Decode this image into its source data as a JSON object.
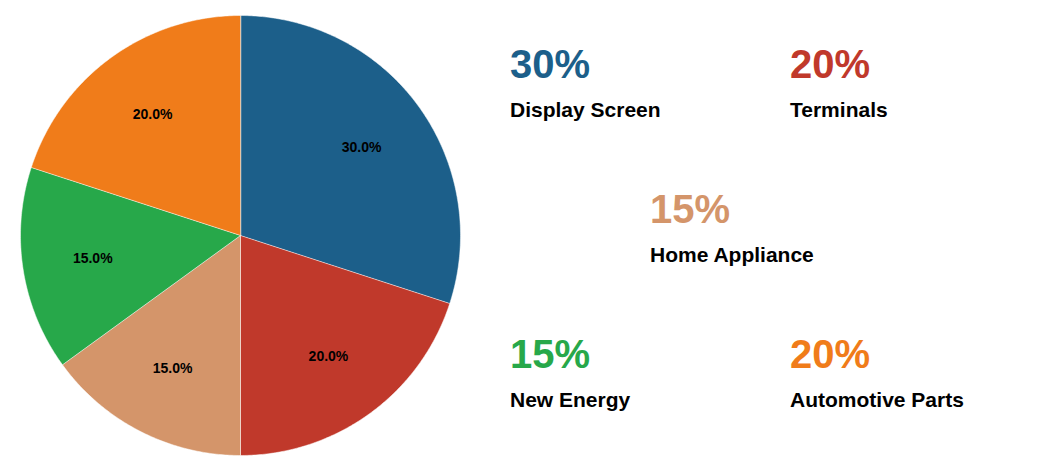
{
  "chart_data": {
    "type": "pie",
    "categories": [
      "Display Screen",
      "Terminals",
      "Home Appliance",
      "New Energy",
      "Automotive Parts"
    ],
    "values": [
      30.0,
      20.0,
      15.0,
      15.0,
      20.0
    ],
    "value_labels": [
      "30.0%",
      "20.0%",
      "15.0%",
      "15.0%",
      "20.0%"
    ],
    "colors": [
      "#1c5f8a",
      "#c0392b",
      "#d4956a",
      "#27a84a",
      "#f07c1a"
    ],
    "data_labels": true,
    "annotations": [
      "30%",
      "20%",
      "15%",
      "15%",
      "20%"
    ]
  }
}
